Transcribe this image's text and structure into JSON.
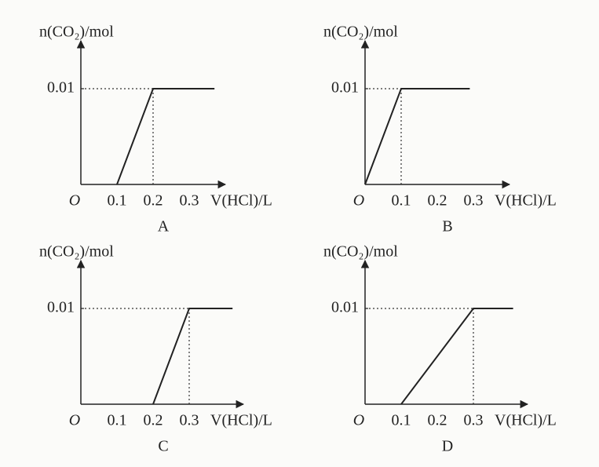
{
  "chart_data": [
    {
      "type": "line",
      "caption": "A",
      "ylabel": "n(CO₂)/mol",
      "xlabel": "V(HCl)/L",
      "origin_label": "O",
      "series": [
        {
          "color": "#222222",
          "x": [
            0.1,
            0.2,
            0.37
          ],
          "values": [
            0,
            0.01,
            0.01
          ]
        }
      ],
      "xlim": [
        0,
        0.4
      ],
      "ylim": [
        0,
        0.015
      ],
      "xticks": [
        0.1,
        0.2,
        0.3
      ],
      "yticks": [
        0.01
      ],
      "guides": true
    },
    {
      "type": "line",
      "caption": "B",
      "ylabel": "n(CO₂)/mol",
      "xlabel": "V(HCl)/L",
      "origin_label": "O",
      "series": [
        {
          "color": "#222222",
          "x": [
            0,
            0.1,
            0.29
          ],
          "values": [
            0,
            0.01,
            0.01
          ]
        }
      ],
      "xlim": [
        0,
        0.4
      ],
      "ylim": [
        0,
        0.015
      ],
      "xticks": [
        0.1,
        0.2,
        0.3
      ],
      "yticks": [
        0.01
      ],
      "guides": true
    },
    {
      "type": "line",
      "caption": "C",
      "ylabel": "n(CO₂)/mol",
      "xlabel": "V(HCl)/L",
      "origin_label": "O",
      "series": [
        {
          "color": "#222222",
          "x": [
            0.2,
            0.3,
            0.42
          ],
          "values": [
            0,
            0.01,
            0.01
          ]
        }
      ],
      "xlim": [
        0,
        0.45
      ],
      "ylim": [
        0,
        0.015
      ],
      "xticks": [
        0.1,
        0.2,
        0.3
      ],
      "yticks": [
        0.01
      ],
      "guides": true
    },
    {
      "type": "line",
      "caption": "D",
      "ylabel": "n(CO₂)/mol",
      "xlabel": "V(HCl)/L",
      "origin_label": "O",
      "series": [
        {
          "color": "#222222",
          "x": [
            0.1,
            0.3,
            0.41
          ],
          "values": [
            0,
            0.01,
            0.01
          ]
        }
      ],
      "xlim": [
        0,
        0.45
      ],
      "ylim": [
        0,
        0.015
      ],
      "xticks": [
        0.1,
        0.2,
        0.3
      ],
      "yticks": [
        0.01
      ],
      "guides": true
    }
  ]
}
